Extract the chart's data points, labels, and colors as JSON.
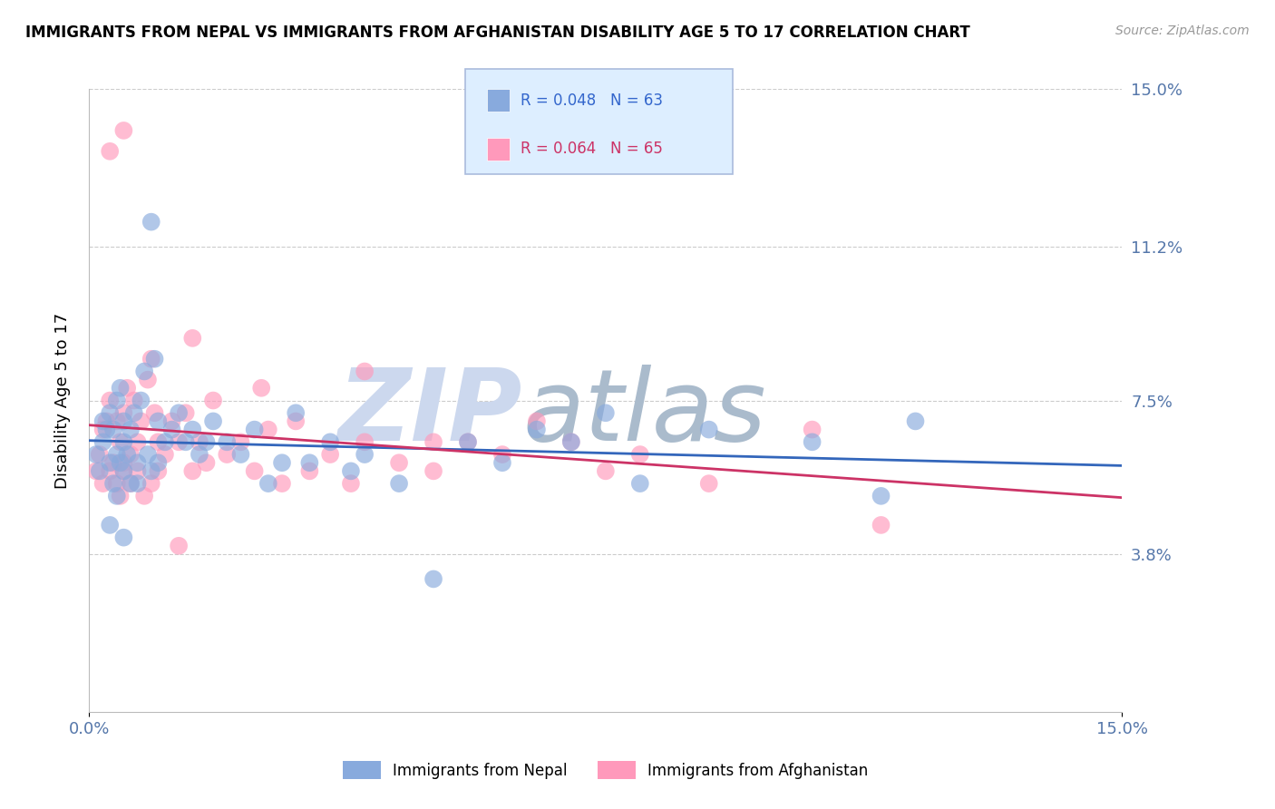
{
  "title": "IMMIGRANTS FROM NEPAL VS IMMIGRANTS FROM AFGHANISTAN DISABILITY AGE 5 TO 17 CORRELATION CHART",
  "source": "Source: ZipAtlas.com",
  "ylabel": "Disability Age 5 to 17",
  "x_min": 0.0,
  "x_max": 15.0,
  "y_min": 0.0,
  "y_max": 15.0,
  "x_tick_labels": [
    "0.0%",
    "15.0%"
  ],
  "y_ticks": [
    3.8,
    7.5,
    11.2,
    15.0
  ],
  "y_tick_labels": [
    "3.8%",
    "7.5%",
    "11.2%",
    "15.0%"
  ],
  "grid_color": "#cccccc",
  "nepal_color": "#88aadd",
  "afghanistan_color": "#ff99bb",
  "nepal_R": 0.048,
  "nepal_N": 63,
  "afghanistan_R": 0.064,
  "afghanistan_N": 65,
  "nepal_scatter_x": [
    0.1,
    0.15,
    0.2,
    0.2,
    0.25,
    0.3,
    0.3,
    0.35,
    0.35,
    0.4,
    0.4,
    0.4,
    0.45,
    0.45,
    0.5,
    0.5,
    0.5,
    0.55,
    0.6,
    0.6,
    0.65,
    0.7,
    0.7,
    0.75,
    0.8,
    0.85,
    0.9,
    0.95,
    1.0,
    1.0,
    1.1,
    1.2,
    1.3,
    1.4,
    1.5,
    1.6,
    1.7,
    1.8,
    2.0,
    2.2,
    2.4,
    2.6,
    2.8,
    3.0,
    3.2,
    3.5,
    3.8,
    4.0,
    4.5,
    5.0,
    5.5,
    6.0,
    6.5,
    7.0,
    7.5,
    8.0,
    9.0,
    10.5,
    11.5,
    12.0,
    0.3,
    0.5,
    0.9
  ],
  "nepal_scatter_y": [
    6.2,
    5.8,
    6.5,
    7.0,
    6.8,
    6.0,
    7.2,
    5.5,
    6.8,
    6.2,
    7.5,
    5.2,
    6.0,
    7.8,
    6.5,
    5.8,
    7.0,
    6.2,
    5.5,
    6.8,
    7.2,
    6.0,
    5.5,
    7.5,
    8.2,
    6.2,
    5.8,
    8.5,
    6.0,
    7.0,
    6.5,
    6.8,
    7.2,
    6.5,
    6.8,
    6.2,
    6.5,
    7.0,
    6.5,
    6.2,
    6.8,
    5.5,
    6.0,
    7.2,
    6.0,
    6.5,
    5.8,
    6.2,
    5.5,
    3.2,
    6.5,
    6.0,
    6.8,
    6.5,
    7.2,
    5.5,
    6.8,
    6.5,
    5.2,
    7.0,
    4.5,
    4.2,
    11.8
  ],
  "afghanistan_scatter_x": [
    0.1,
    0.15,
    0.2,
    0.2,
    0.25,
    0.3,
    0.3,
    0.35,
    0.4,
    0.4,
    0.45,
    0.45,
    0.5,
    0.5,
    0.5,
    0.55,
    0.6,
    0.6,
    0.65,
    0.7,
    0.7,
    0.75,
    0.8,
    0.85,
    0.9,
    0.95,
    1.0,
    1.0,
    1.1,
    1.2,
    1.3,
    1.4,
    1.5,
    1.6,
    1.7,
    1.8,
    2.0,
    2.2,
    2.4,
    2.6,
    2.8,
    3.0,
    3.2,
    3.5,
    3.8,
    4.0,
    4.5,
    5.0,
    5.5,
    6.0,
    6.5,
    7.0,
    7.5,
    8.0,
    9.0,
    10.5,
    11.5,
    0.3,
    0.5,
    0.9,
    1.5,
    2.5,
    4.0,
    5.0,
    1.3
  ],
  "afghanistan_scatter_y": [
    5.8,
    6.2,
    5.5,
    6.8,
    7.0,
    5.8,
    7.5,
    6.0,
    5.5,
    7.0,
    5.2,
    6.5,
    5.8,
    7.2,
    6.0,
    7.8,
    5.5,
    6.2,
    7.5,
    5.8,
    6.5,
    7.0,
    5.2,
    8.0,
    5.5,
    7.2,
    5.8,
    6.5,
    6.2,
    7.0,
    6.5,
    7.2,
    5.8,
    6.5,
    6.0,
    7.5,
    6.2,
    6.5,
    5.8,
    6.8,
    5.5,
    7.0,
    5.8,
    6.2,
    5.5,
    6.5,
    6.0,
    5.8,
    6.5,
    6.2,
    7.0,
    6.5,
    5.8,
    6.2,
    5.5,
    6.8,
    4.5,
    13.5,
    14.0,
    8.5,
    9.0,
    7.8,
    8.2,
    6.5,
    4.0
  ],
  "nepal_line_color": "#3366bb",
  "afghanistan_line_color": "#cc3366",
  "legend_box_color": "#ddeeff",
  "nepal_legend_color": "#88aadd",
  "afghanistan_legend_color": "#ff99bb",
  "bottom_legend_nepal": "Immigrants from Nepal",
  "bottom_legend_afghanistan": "Immigrants from Afghanistan"
}
